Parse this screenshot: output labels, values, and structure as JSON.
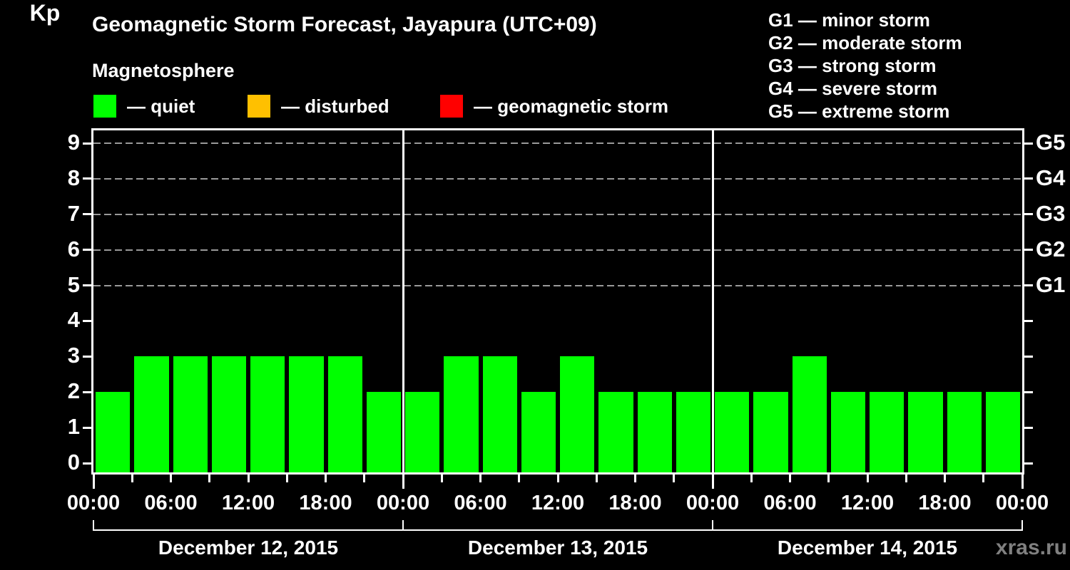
{
  "title": "Geomagnetic Storm Forecast, Jayapura (UTC+09)",
  "subtitle": "Magnetosphere",
  "kp_axis_label": "Kp",
  "watermark": "xras.ru",
  "colors": {
    "background": "#000000",
    "axis": "#ffffff",
    "gridline": "#999999",
    "quiet": "#00ff00",
    "disturbed": "#ffc000",
    "storm": "#ff0000",
    "watermark": "#808080"
  },
  "condition_legend": [
    {
      "name": "quiet",
      "label": "— quiet",
      "color": "#00ff00"
    },
    {
      "name": "disturbed",
      "label": "— disturbed",
      "color": "#ffc000"
    },
    {
      "name": "geomagnetic-storm",
      "label": "— geomagnetic storm",
      "color": "#ff0000"
    }
  ],
  "storm_scale_legend": [
    "G1 — minor storm",
    "G2 — moderate storm",
    "G3 — strong storm",
    "G4 — severe storm",
    "G5 — extreme storm"
  ],
  "chart_data": {
    "type": "bar",
    "title": "Geomagnetic Storm Forecast, Jayapura (UTC+09)",
    "ylabel": "Kp",
    "ylim": [
      0,
      9
    ],
    "y_tick_labels": [
      "0",
      "1",
      "2",
      "3",
      "4",
      "5",
      "6",
      "7",
      "8",
      "9"
    ],
    "gridlines_at_kp": [
      5,
      6,
      7,
      8,
      9
    ],
    "right_axis_labels": [
      {
        "kp": 5,
        "label": "G1"
      },
      {
        "kp": 6,
        "label": "G2"
      },
      {
        "kp": 7,
        "label": "G3"
      },
      {
        "kp": 8,
        "label": "G4"
      },
      {
        "kp": 9,
        "label": "G5"
      }
    ],
    "hours_per_bar": 3,
    "bar_color": "#00ff00",
    "x_tick_labels": [
      "00:00",
      "06:00",
      "12:00",
      "18:00",
      "00:00",
      "06:00",
      "12:00",
      "18:00",
      "00:00",
      "06:00",
      "12:00",
      "18:00",
      "00:00"
    ],
    "days": [
      {
        "date": "December 12, 2015",
        "kp_values": [
          2,
          3,
          3,
          3,
          3,
          3,
          3,
          2
        ]
      },
      {
        "date": "December 13, 2015",
        "kp_values": [
          2,
          3,
          3,
          2,
          3,
          2,
          2,
          2
        ]
      },
      {
        "date": "December 14, 2015",
        "kp_values": [
          2,
          2,
          3,
          2,
          2,
          2,
          2,
          2
        ]
      }
    ],
    "grid": "dashed horizontal lines at Kp 5 through 9",
    "legend_position": "top"
  }
}
